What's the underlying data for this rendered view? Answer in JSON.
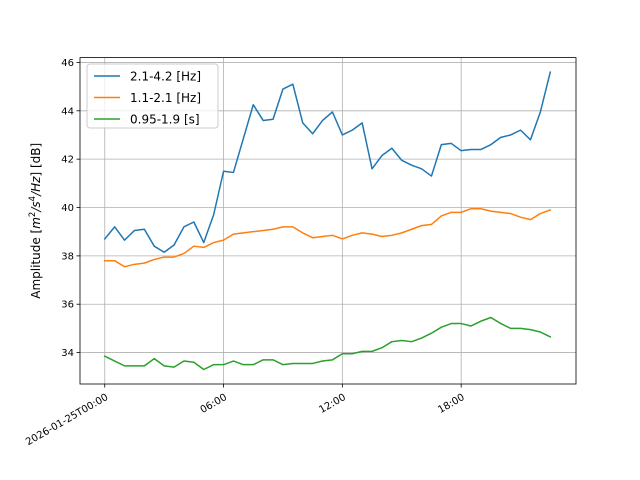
{
  "chart_data": {
    "type": "line",
    "xlabel": "",
    "ylabel_parts": [
      "Amplitude [",
      "m",
      "2",
      "/",
      "s",
      "4",
      "/",
      "Hz",
      "] [dB]"
    ],
    "x_axis": "datetime",
    "x_start": "2026-01-25T00:00",
    "xlim_hours": [
      -1.25,
      23.8
    ],
    "ylim": [
      32.7,
      46.2
    ],
    "grid": true,
    "legend_position": "upper-left",
    "x_ticks": [
      {
        "hours": 0,
        "label": "2026-01-25T00:00"
      },
      {
        "hours": 6,
        "label": "06:00"
      },
      {
        "hours": 12,
        "label": "12:00"
      },
      {
        "hours": 18,
        "label": "18:00"
      }
    ],
    "y_ticks": [
      {
        "value": 34,
        "label": "34"
      },
      {
        "value": 36,
        "label": "36"
      },
      {
        "value": 38,
        "label": "38"
      },
      {
        "value": 40,
        "label": "40"
      },
      {
        "value": 42,
        "label": "42"
      },
      {
        "value": 44,
        "label": "44"
      },
      {
        "value": 46,
        "label": "46"
      }
    ],
    "x_hours": [
      0,
      0.5,
      1,
      1.5,
      2,
      2.5,
      3,
      3.5,
      4,
      4.5,
      5,
      5.5,
      6,
      6.5,
      7,
      7.5,
      8,
      8.5,
      9,
      9.5,
      10,
      10.5,
      11,
      11.5,
      12,
      12.5,
      13,
      13.5,
      14,
      14.5,
      15,
      15.5,
      16,
      16.5,
      17,
      17.5,
      18,
      18.5,
      19,
      19.5,
      20,
      20.5,
      21,
      21.5,
      22,
      22.5
    ],
    "series": [
      {
        "name": "2.1-4.2 [Hz]",
        "color": "#1f77b4",
        "values": [
          38.7,
          39.2,
          38.65,
          39.05,
          39.1,
          38.4,
          38.15,
          38.45,
          39.2,
          39.4,
          38.55,
          39.7,
          41.5,
          41.45,
          42.85,
          44.25,
          43.6,
          43.65,
          44.9,
          45.1,
          43.5,
          43.05,
          43.6,
          43.95,
          43.0,
          43.2,
          43.5,
          41.6,
          42.15,
          42.45,
          41.95,
          41.75,
          41.6,
          41.3,
          42.6,
          42.65,
          42.35,
          42.4,
          42.4,
          42.6,
          42.9,
          43.0,
          43.2,
          42.8,
          43.95,
          45.6
        ]
      },
      {
        "name": "1.1-2.1 [Hz]",
        "color": "#ff7f0e",
        "values": [
          37.8,
          37.8,
          37.55,
          37.65,
          37.7,
          37.85,
          37.95,
          37.95,
          38.1,
          38.4,
          38.35,
          38.55,
          38.65,
          38.9,
          38.95,
          39.0,
          39.05,
          39.1,
          39.2,
          39.2,
          38.95,
          38.75,
          38.8,
          38.85,
          38.7,
          38.85,
          38.95,
          38.9,
          38.8,
          38.85,
          38.95,
          39.1,
          39.25,
          39.3,
          39.65,
          39.8,
          39.8,
          39.95,
          39.95,
          39.85,
          39.8,
          39.75,
          39.6,
          39.5,
          39.75,
          39.9
        ]
      },
      {
        "name": "0.95-1.9 [s]",
        "color": "#2ca02c",
        "values": [
          33.85,
          33.65,
          33.45,
          33.45,
          33.45,
          33.75,
          33.45,
          33.4,
          33.65,
          33.6,
          33.3,
          33.5,
          33.5,
          33.65,
          33.5,
          33.5,
          33.7,
          33.7,
          33.5,
          33.55,
          33.55,
          33.55,
          33.65,
          33.7,
          33.95,
          33.95,
          34.05,
          34.05,
          34.2,
          34.45,
          34.5,
          34.45,
          34.6,
          34.8,
          35.05,
          35.2,
          35.2,
          35.1,
          35.3,
          35.45,
          35.2,
          35.0,
          35.0,
          34.95,
          34.85,
          34.65
        ]
      }
    ]
  }
}
